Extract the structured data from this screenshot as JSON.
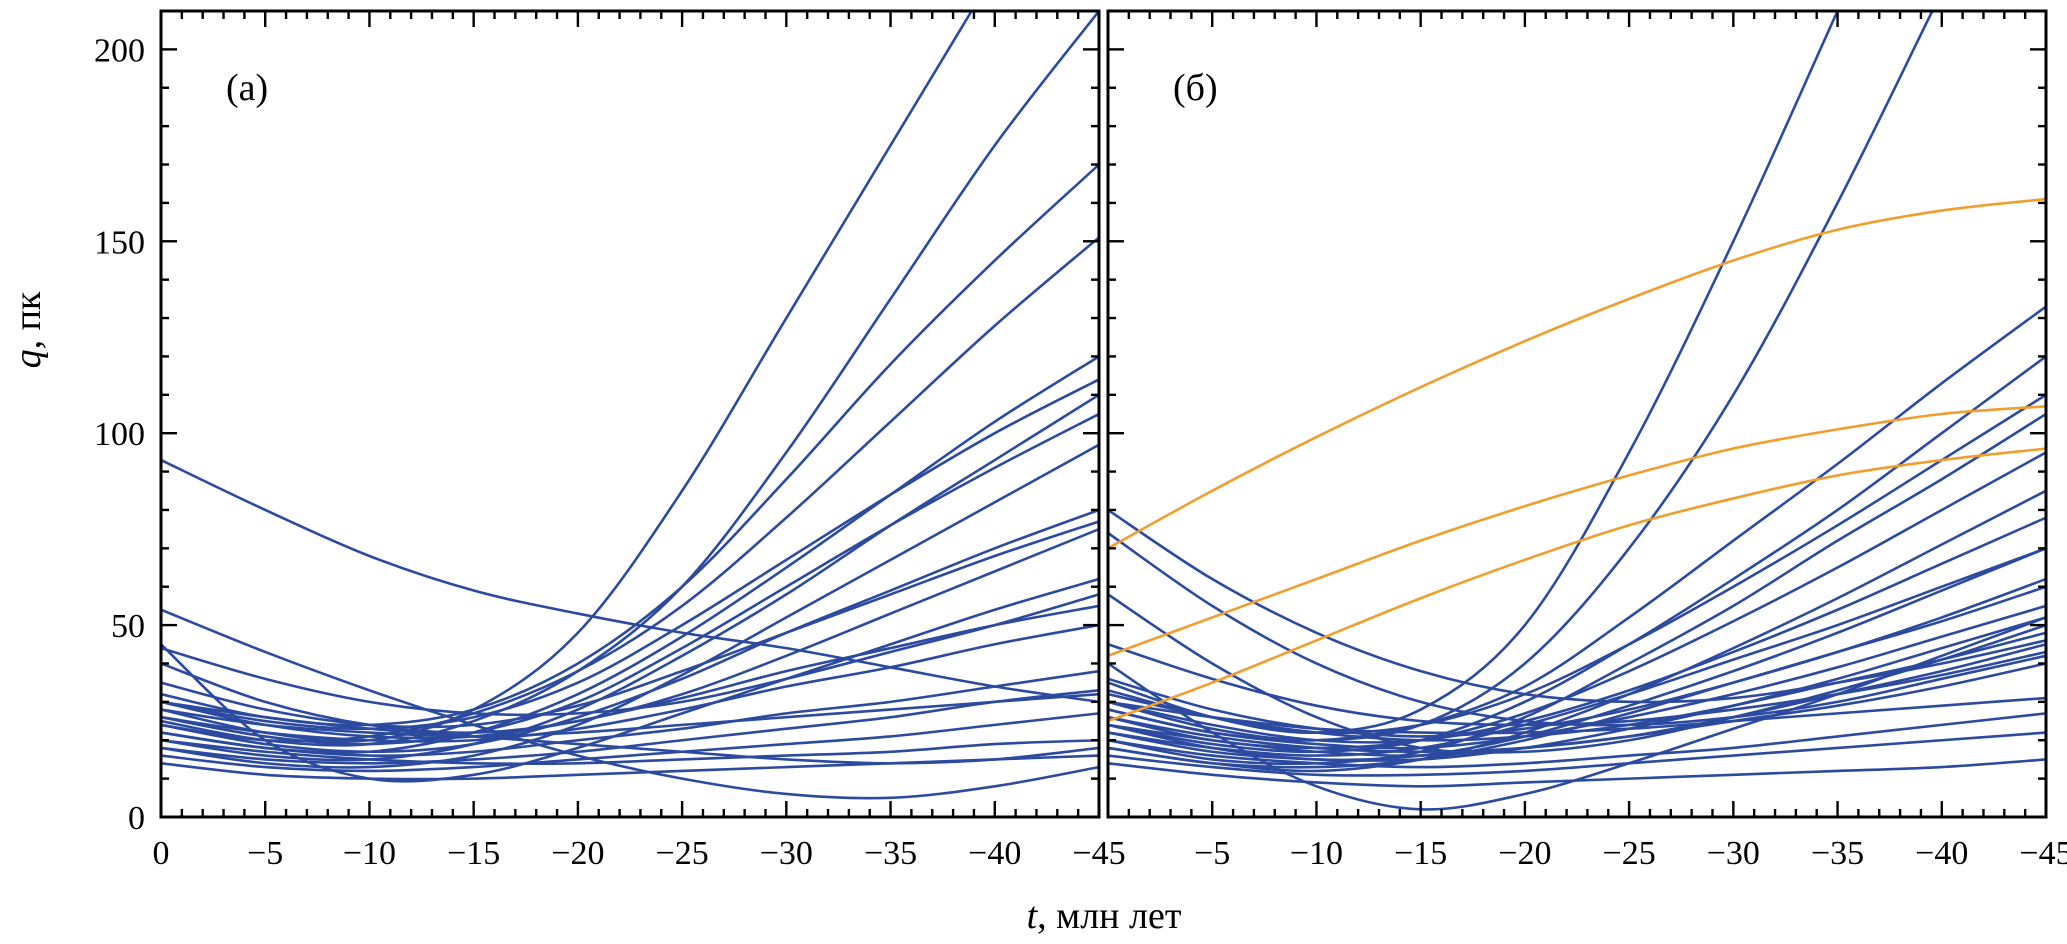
{
  "figure": {
    "panels": [
      {
        "label": "(а)"
      },
      {
        "label": "(б)"
      }
    ],
    "x_axis_label_var": "t",
    "x_axis_label_rest": ", млн лет",
    "y_axis_label_var": "q",
    "y_axis_label_rest": ", пк"
  },
  "colors": {
    "blue": "#2b4aa0",
    "orange": "#f09e2d",
    "axis": "#000000"
  },
  "chart_data": [
    {
      "type": "line",
      "panel_label": "(а)",
      "xlabel": "t, млн лет",
      "ylabel": "q, пк",
      "x": [
        0,
        -5,
        -10,
        -15,
        -20,
        -25,
        -30,
        -35,
        -40,
        -45
      ],
      "xlim": [
        0,
        -45
      ],
      "ylim": [
        0,
        210
      ],
      "grid": false,
      "x_major_ticks": [
        0,
        -5,
        -10,
        -15,
        -20,
        -25,
        -30,
        -35,
        -40,
        -45
      ],
      "x_minor_step": 1,
      "y_major_ticks": [
        0,
        50,
        100,
        150,
        200
      ],
      "y_minor_step": 10,
      "x_tick_labels": [
        "0",
        "−5",
        "−10",
        "−15",
        "−20",
        "−25",
        "−30",
        "−35",
        "−40",
        "−45"
      ],
      "y_tick_labels": [
        "0",
        "50",
        "100",
        "150",
        "200"
      ],
      "series": [
        {
          "color": "blue",
          "values": [
            28,
            22,
            20,
            28,
            48,
            85,
            130,
            175,
            220,
            265
          ]
        },
        {
          "color": "blue",
          "values": [
            25,
            20,
            19,
            25,
            38,
            60,
            95,
            135,
            175,
            210
          ]
        },
        {
          "color": "blue",
          "values": [
            32,
            26,
            24,
            28,
            40,
            60,
            88,
            118,
            145,
            170
          ]
        },
        {
          "color": "blue",
          "values": [
            24,
            20,
            21,
            27,
            38,
            55,
            78,
            103,
            128,
            151
          ]
        },
        {
          "color": "blue",
          "values": [
            22,
            18,
            17,
            22,
            32,
            47,
            65,
            84,
            103,
            120
          ]
        },
        {
          "color": "blue",
          "values": [
            30,
            25,
            23,
            26,
            35,
            50,
            67,
            84,
            100,
            114
          ]
        },
        {
          "color": "blue",
          "values": [
            20,
            16,
            15,
            19,
            28,
            42,
            58,
            76,
            93,
            110
          ]
        },
        {
          "color": "blue",
          "values": [
            26,
            21,
            19,
            22,
            30,
            44,
            60,
            76,
            91,
            105
          ]
        },
        {
          "color": "blue",
          "values": [
            18,
            14,
            13,
            16,
            24,
            37,
            52,
            67,
            82,
            97
          ]
        },
        {
          "color": "blue",
          "values": [
            24,
            19,
            17,
            19,
            26,
            36,
            48,
            59,
            70,
            80
          ]
        },
        {
          "color": "blue",
          "values": [
            35,
            28,
            24,
            24,
            29,
            38,
            48,
            58,
            68,
            77
          ]
        },
        {
          "color": "blue",
          "values": [
            30,
            24,
            21,
            21,
            25,
            31,
            38,
            44,
            50,
            55
          ]
        },
        {
          "color": "blue",
          "values": [
            26,
            22,
            20,
            20,
            23,
            28,
            34,
            39,
            45,
            50
          ]
        },
        {
          "color": "blue",
          "values": [
            93,
            80,
            68,
            59,
            53,
            48,
            44,
            39,
            34,
            30
          ]
        },
        {
          "color": "blue",
          "values": [
            54,
            43,
            33,
            24,
            16,
            10,
            6,
            5,
            8,
            13
          ]
        },
        {
          "color": "blue",
          "values": [
            45,
            20,
            10,
            11,
            18,
            27,
            36,
            45,
            54,
            62
          ]
        },
        {
          "color": "blue",
          "values": [
            22,
            18,
            16,
            17,
            20,
            23,
            27,
            30,
            34,
            38
          ]
        },
        {
          "color": "blue",
          "values": [
            18,
            15,
            14,
            15,
            17,
            20,
            23,
            26,
            30,
            33
          ]
        },
        {
          "color": "blue",
          "values": [
            28,
            24,
            22,
            21,
            22,
            24,
            26,
            28,
            30,
            32
          ]
        },
        {
          "color": "blue",
          "values": [
            16,
            13,
            12,
            13,
            15,
            17,
            19,
            21,
            24,
            27
          ]
        },
        {
          "color": "blue",
          "values": [
            20,
            17,
            15,
            14,
            14,
            15,
            16,
            17,
            19,
            20
          ]
        },
        {
          "color": "blue",
          "values": [
            14,
            11,
            10,
            10,
            11,
            12,
            13,
            14,
            15,
            16
          ]
        },
        {
          "color": "blue",
          "values": [
            40,
            30,
            24,
            22,
            25,
            32,
            42,
            53,
            64,
            75
          ]
        },
        {
          "color": "blue",
          "values": [
            44,
            36,
            30,
            27,
            27,
            30,
            36,
            43,
            50,
            58
          ]
        },
        {
          "color": "blue",
          "values": [
            30,
            26,
            23,
            21,
            19,
            17,
            15,
            14,
            15,
            18
          ]
        }
      ]
    },
    {
      "type": "line",
      "panel_label": "(б)",
      "xlabel": "t, млн лет",
      "ylabel": "q, пк",
      "x": [
        0,
        -5,
        -10,
        -15,
        -20,
        -25,
        -30,
        -35,
        -40,
        -45
      ],
      "xlim": [
        0,
        -45
      ],
      "ylim": [
        0,
        210
      ],
      "grid": false,
      "x_major_ticks": [
        0,
        -5,
        -10,
        -15,
        -20,
        -25,
        -30,
        -35,
        -40,
        -45
      ],
      "x_minor_step": 1,
      "y_major_ticks": [
        0,
        50,
        100,
        150,
        200
      ],
      "y_minor_step": 10,
      "x_tick_labels": [
        "",
        "−5",
        "−10",
        "−15",
        "−20",
        "−25",
        "−30",
        "−35",
        "−40",
        "−45"
      ],
      "y_tick_labels": [],
      "series": [
        {
          "color": "blue",
          "values": [
            35,
            26,
            22,
            28,
            50,
            95,
            150,
            210,
            270,
            330
          ]
        },
        {
          "color": "blue",
          "values": [
            30,
            23,
            20,
            24,
            40,
            70,
            110,
            160,
            215,
            270
          ]
        },
        {
          "color": "blue",
          "values": [
            28,
            22,
            20,
            24,
            34,
            52,
            72,
            92,
            113,
            133
          ]
        },
        {
          "color": "blue",
          "values": [
            24,
            19,
            17,
            20,
            30,
            45,
            62,
            80,
            100,
            120
          ]
        },
        {
          "color": "blue",
          "values": [
            33,
            26,
            22,
            24,
            32,
            45,
            60,
            76,
            93,
            110
          ]
        },
        {
          "color": "blue",
          "values": [
            20,
            15,
            14,
            17,
            26,
            40,
            55,
            72,
            88,
            105
          ]
        },
        {
          "color": "blue",
          "values": [
            26,
            20,
            18,
            20,
            27,
            38,
            51,
            65,
            80,
            95
          ]
        },
        {
          "color": "blue",
          "values": [
            18,
            14,
            12,
            15,
            22,
            32,
            44,
            57,
            71,
            85
          ]
        },
        {
          "color": "blue",
          "values": [
            30,
            24,
            20,
            20,
            25,
            33,
            43,
            54,
            66,
            78
          ]
        },
        {
          "color": "blue",
          "values": [
            24,
            18,
            15,
            16,
            21,
            29,
            38,
            48,
            59,
            70
          ]
        },
        {
          "color": "blue",
          "values": [
            36,
            28,
            23,
            21,
            23,
            28,
            35,
            43,
            52,
            62
          ]
        },
        {
          "color": "blue",
          "values": [
            28,
            22,
            19,
            18,
            21,
            26,
            32,
            39,
            47,
            55
          ]
        },
        {
          "color": "blue",
          "values": [
            22,
            17,
            15,
            15,
            18,
            23,
            29,
            36,
            44,
            52
          ]
        },
        {
          "color": "blue",
          "values": [
            32,
            26,
            22,
            20,
            21,
            24,
            29,
            35,
            41,
            48
          ]
        },
        {
          "color": "blue",
          "values": [
            26,
            21,
            18,
            17,
            18,
            21,
            26,
            32,
            38,
            45
          ]
        },
        {
          "color": "blue",
          "values": [
            80,
            62,
            48,
            38,
            32,
            30,
            31,
            35,
            40,
            46
          ]
        },
        {
          "color": "blue",
          "values": [
            74,
            55,
            40,
            30,
            25,
            24,
            26,
            30,
            36,
            42
          ]
        },
        {
          "color": "blue",
          "values": [
            58,
            40,
            26,
            18,
            17,
            20,
            26,
            33,
            41,
            50
          ]
        },
        {
          "color": "blue",
          "values": [
            40,
            22,
            8,
            2,
            6,
            14,
            23,
            32,
            42,
            52
          ]
        },
        {
          "color": "blue",
          "values": [
            20,
            16,
            14,
            13,
            14,
            16,
            18,
            21,
            24,
            27
          ]
        },
        {
          "color": "blue",
          "values": [
            16,
            13,
            11,
            11,
            12,
            14,
            16,
            18,
            20,
            22
          ]
        },
        {
          "color": "blue",
          "values": [
            14,
            11,
            9,
            8,
            9,
            10,
            11,
            12,
            13,
            15
          ]
        },
        {
          "color": "blue",
          "values": [
            30,
            26,
            23,
            22,
            22,
            23,
            25,
            27,
            29,
            31
          ]
        },
        {
          "color": "blue",
          "values": [
            24,
            20,
            17,
            16,
            18,
            21,
            25,
            29,
            34,
            40
          ]
        },
        {
          "color": "blue",
          "values": [
            45,
            36,
            29,
            25,
            24,
            25,
            28,
            32,
            37,
            43
          ]
        },
        {
          "color": "blue",
          "values": [
            18,
            14,
            13,
            15,
            20,
            27,
            35,
            43,
            51,
            60
          ]
        },
        {
          "color": "blue",
          "values": [
            22,
            18,
            16,
            18,
            24,
            32,
            41,
            50,
            60,
            70
          ]
        },
        {
          "color": "orange",
          "values": [
            70,
            85,
            99,
            112,
            124,
            135,
            145,
            153,
            158,
            161
          ]
        },
        {
          "color": "orange",
          "values": [
            42,
            52,
            62,
            72,
            81,
            89,
            96,
            101,
            105,
            107
          ]
        },
        {
          "color": "orange",
          "values": [
            25,
            35,
            46,
            57,
            67,
            76,
            83,
            89,
            93,
            96
          ]
        }
      ]
    }
  ]
}
